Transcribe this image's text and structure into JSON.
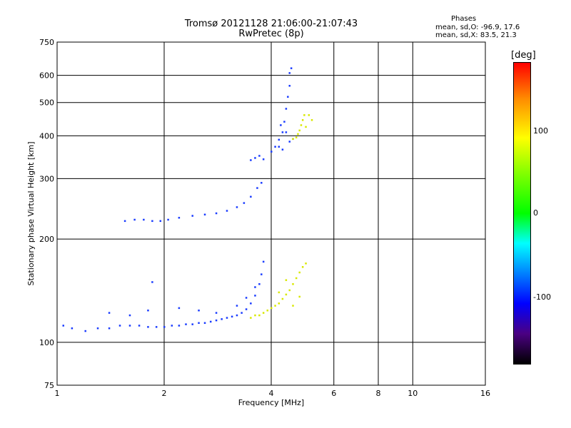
{
  "header": {
    "title_line1": "Tromsø 20121128 21:06:00-21:07:43",
    "title_line2": "RwPretec (8p)"
  },
  "phase_info": {
    "title": "Phases",
    "line_o": "mean, sd,O: -96.9, 17.6",
    "line_x": "mean, sd,X:  83.5, 21.3"
  },
  "colorbar": {
    "unit": "[deg]",
    "ticks": [
      "100",
      "0",
      "-100"
    ],
    "range": [
      -180,
      180
    ]
  },
  "chart_data": {
    "type": "scatter",
    "title": "Tromsø 20121128 21:06:00-21:07:43",
    "subtitle": "RwPretec (8p)",
    "xlabel": "Frequency [MHz]",
    "ylabel": "Stationary phase Virtual Height [km]",
    "xscale": "log",
    "yscale": "log",
    "xlim": [
      1,
      16
    ],
    "ylim": [
      75,
      750
    ],
    "xticks": [
      1,
      2,
      4,
      6,
      8,
      10,
      16
    ],
    "xtick_labels": [
      "1",
      "2",
      "4",
      "6",
      "8",
      "10",
      "16"
    ],
    "yticks": [
      75,
      100,
      200,
      300,
      400,
      500,
      600,
      750
    ],
    "ytick_labels": [
      "75",
      "100",
      "200",
      "300",
      "400",
      "500",
      "600",
      "750"
    ],
    "grid": true,
    "color_scale": "phase [deg]",
    "series": [
      {
        "name": "O",
        "color": "#1a3cff",
        "points": [
          [
            1.04,
            112
          ],
          [
            1.1,
            110
          ],
          [
            1.2,
            108
          ],
          [
            1.3,
            110
          ],
          [
            1.4,
            110
          ],
          [
            1.5,
            112
          ],
          [
            1.6,
            112
          ],
          [
            1.7,
            112
          ],
          [
            1.8,
            111
          ],
          [
            1.9,
            111
          ],
          [
            2.0,
            111
          ],
          [
            2.1,
            112
          ],
          [
            2.2,
            112
          ],
          [
            2.3,
            113
          ],
          [
            2.4,
            113
          ],
          [
            2.5,
            114
          ],
          [
            2.6,
            114
          ],
          [
            2.7,
            115
          ],
          [
            2.8,
            116
          ],
          [
            2.9,
            117
          ],
          [
            3.0,
            118
          ],
          [
            3.1,
            119
          ],
          [
            3.2,
            120
          ],
          [
            3.3,
            122
          ],
          [
            3.4,
            125
          ],
          [
            3.5,
            130
          ],
          [
            3.6,
            137
          ],
          [
            3.7,
            148
          ],
          [
            3.75,
            158
          ],
          [
            3.8,
            172
          ],
          [
            1.4,
            122
          ],
          [
            1.6,
            120
          ],
          [
            1.8,
            124
          ],
          [
            2.2,
            126
          ],
          [
            2.5,
            124
          ],
          [
            2.8,
            122
          ],
          [
            3.2,
            128
          ],
          [
            3.4,
            135
          ],
          [
            3.6,
            145
          ],
          [
            1.85,
            150
          ],
          [
            1.55,
            226
          ],
          [
            1.65,
            228
          ],
          [
            1.75,
            228
          ],
          [
            1.85,
            226
          ],
          [
            1.95,
            226
          ],
          [
            2.05,
            228
          ],
          [
            2.2,
            231
          ],
          [
            2.4,
            234
          ],
          [
            2.6,
            236
          ],
          [
            2.8,
            238
          ],
          [
            3.0,
            242
          ],
          [
            3.2,
            248
          ],
          [
            3.35,
            255
          ],
          [
            3.5,
            266
          ],
          [
            3.65,
            282
          ],
          [
            3.75,
            292
          ],
          [
            3.5,
            340
          ],
          [
            3.6,
            345
          ],
          [
            3.7,
            350
          ],
          [
            3.8,
            342
          ],
          [
            4.0,
            360
          ],
          [
            4.1,
            372
          ],
          [
            4.2,
            390
          ],
          [
            4.3,
            410
          ],
          [
            4.35,
            440
          ],
          [
            4.4,
            480
          ],
          [
            4.45,
            520
          ],
          [
            4.5,
            560
          ],
          [
            4.5,
            610
          ],
          [
            4.55,
            630
          ],
          [
            4.2,
            372
          ],
          [
            4.3,
            365
          ],
          [
            4.5,
            385
          ],
          [
            4.6,
            392
          ],
          [
            4.4,
            410
          ],
          [
            4.25,
            430
          ]
        ]
      },
      {
        "name": "X",
        "color": "#d8e800",
        "points": [
          [
            3.5,
            118
          ],
          [
            3.6,
            120
          ],
          [
            3.7,
            120
          ],
          [
            3.8,
            122
          ],
          [
            3.9,
            124
          ],
          [
            4.0,
            126
          ],
          [
            4.1,
            128
          ],
          [
            4.2,
            130
          ],
          [
            4.3,
            134
          ],
          [
            4.4,
            138
          ],
          [
            4.5,
            142
          ],
          [
            4.6,
            148
          ],
          [
            4.7,
            154
          ],
          [
            4.8,
            160
          ],
          [
            4.9,
            166
          ],
          [
            5.0,
            170
          ],
          [
            4.2,
            140
          ],
          [
            4.4,
            152
          ],
          [
            4.6,
            128
          ],
          [
            4.8,
            136
          ],
          [
            4.6,
            392
          ],
          [
            4.7,
            396
          ],
          [
            4.75,
            405
          ],
          [
            4.8,
            415
          ],
          [
            4.85,
            430
          ],
          [
            4.9,
            445
          ],
          [
            4.95,
            460
          ],
          [
            5.1,
            460
          ],
          [
            5.2,
            445
          ],
          [
            5.0,
            425
          ]
        ]
      }
    ]
  }
}
